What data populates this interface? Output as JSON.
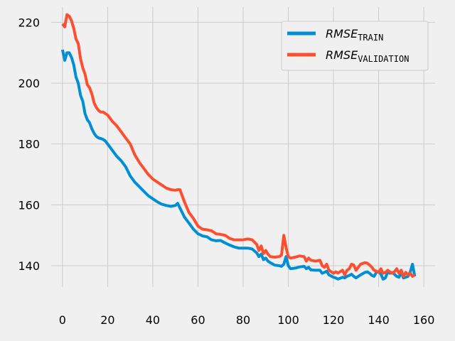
{
  "chart_data": {
    "type": "line",
    "title": "",
    "xlabel": "",
    "ylabel": "",
    "xlim": [
      -5,
      165
    ],
    "ylim": [
      133,
      225
    ],
    "x_ticks": [
      0,
      20,
      40,
      60,
      80,
      100,
      120,
      140,
      160
    ],
    "y_ticks": [
      140,
      160,
      180,
      200,
      220
    ],
    "grid": true,
    "legend_position": "top-right",
    "series": [
      {
        "name": "RMSE",
        "name_subscript": "TRAIN",
        "color": "#008fd5",
        "points": [
          [
            0,
            211
          ],
          [
            1,
            207.5
          ],
          [
            2,
            210
          ],
          [
            3,
            210
          ],
          [
            4,
            208.5
          ],
          [
            5,
            206
          ],
          [
            6,
            202
          ],
          [
            7,
            200
          ],
          [
            8,
            196
          ],
          [
            9,
            194
          ],
          [
            10,
            190
          ],
          [
            11,
            188
          ],
          [
            12,
            187
          ],
          [
            13,
            185
          ],
          [
            14,
            183.5
          ],
          [
            15,
            182.5
          ],
          [
            16,
            182
          ],
          [
            17,
            181.8
          ],
          [
            18,
            181.5
          ],
          [
            19,
            181
          ],
          [
            20,
            180
          ],
          [
            22,
            178
          ],
          [
            24,
            176
          ],
          [
            26,
            174.5
          ],
          [
            28,
            172.5
          ],
          [
            30,
            169.5
          ],
          [
            32,
            167.5
          ],
          [
            34,
            166
          ],
          [
            36,
            164.5
          ],
          [
            38,
            163
          ],
          [
            40,
            162
          ],
          [
            42,
            161
          ],
          [
            44,
            160.2
          ],
          [
            46,
            159.8
          ],
          [
            48,
            159.5
          ],
          [
            50,
            159.8
          ],
          [
            51,
            160.5
          ],
          [
            52,
            159
          ],
          [
            54,
            156
          ],
          [
            56,
            154
          ],
          [
            58,
            152
          ],
          [
            60,
            150.5
          ],
          [
            62,
            149.8
          ],
          [
            64,
            149.5
          ],
          [
            66,
            148.5
          ],
          [
            68,
            148.2
          ],
          [
            70,
            148.3
          ],
          [
            72,
            147.5
          ],
          [
            74,
            146.8
          ],
          [
            76,
            146.2
          ],
          [
            78,
            145.8
          ],
          [
            80,
            145.8
          ],
          [
            82,
            145.8
          ],
          [
            84,
            145.5
          ],
          [
            86,
            144.2
          ],
          [
            87,
            143
          ],
          [
            88,
            143.8
          ],
          [
            89,
            142
          ],
          [
            90,
            142.5
          ],
          [
            91,
            141.5
          ],
          [
            92,
            141
          ],
          [
            94,
            140.2
          ],
          [
            96,
            140
          ],
          [
            97,
            139.8
          ],
          [
            98,
            140.5
          ],
          [
            99,
            143
          ],
          [
            100,
            140
          ],
          [
            101,
            139
          ],
          [
            103,
            139.2
          ],
          [
            105,
            139.6
          ],
          [
            107,
            139.8
          ],
          [
            108,
            139
          ],
          [
            109,
            139.5
          ],
          [
            110,
            138.6
          ],
          [
            112,
            138.5
          ],
          [
            114,
            138.5
          ],
          [
            115,
            137.5
          ],
          [
            116,
            137.8
          ],
          [
            117,
            138.2
          ],
          [
            118,
            137
          ],
          [
            120,
            136.2
          ],
          [
            121,
            136
          ],
          [
            122,
            135.6
          ],
          [
            124,
            136.2
          ],
          [
            125,
            136
          ],
          [
            126,
            136.5
          ],
          [
            127,
            136.8
          ],
          [
            128,
            137.2
          ],
          [
            129,
            136.5
          ],
          [
            130,
            136
          ],
          [
            132,
            137
          ],
          [
            134,
            137.8
          ],
          [
            135,
            138
          ],
          [
            136,
            137.5
          ],
          [
            137,
            136.8
          ],
          [
            138,
            136.5
          ],
          [
            139,
            137.8
          ],
          [
            140,
            138
          ],
          [
            141,
            137.2
          ],
          [
            142,
            135.6
          ],
          [
            143,
            136
          ],
          [
            144,
            138
          ],
          [
            145,
            137.5
          ],
          [
            146,
            137.8
          ],
          [
            147,
            137.2
          ],
          [
            148,
            136.5
          ],
          [
            149,
            136.2
          ],
          [
            150,
            137.8
          ],
          [
            151,
            136
          ],
          [
            152,
            136.2
          ],
          [
            153,
            136.5
          ],
          [
            154,
            138
          ],
          [
            155,
            140.5
          ],
          [
            156,
            136.5
          ]
        ]
      },
      {
        "name": "RMSE",
        "name_subscript": "VALIDATION",
        "color": "#fc4f30",
        "points": [
          [
            0,
            219.5
          ],
          [
            1,
            218.5
          ],
          [
            2,
            222.5
          ],
          [
            3,
            222
          ],
          [
            4,
            220.5
          ],
          [
            5,
            218
          ],
          [
            6,
            214.5
          ],
          [
            7,
            213
          ],
          [
            8,
            208
          ],
          [
            9,
            205
          ],
          [
            10,
            203
          ],
          [
            11,
            199.5
          ],
          [
            12,
            198.5
          ],
          [
            13,
            196.5
          ],
          [
            14,
            193.5
          ],
          [
            15,
            192
          ],
          [
            16,
            191
          ],
          [
            17,
            190.5
          ],
          [
            18,
            190.5
          ],
          [
            19,
            190
          ],
          [
            20,
            189.5
          ],
          [
            22,
            187.5
          ],
          [
            24,
            186
          ],
          [
            26,
            184
          ],
          [
            28,
            182
          ],
          [
            30,
            180
          ],
          [
            32,
            176.5
          ],
          [
            34,
            174
          ],
          [
            36,
            172
          ],
          [
            38,
            170
          ],
          [
            40,
            168.5
          ],
          [
            42,
            167.5
          ],
          [
            44,
            166.5
          ],
          [
            46,
            165.5
          ],
          [
            48,
            165
          ],
          [
            50,
            164.8
          ],
          [
            51,
            165
          ],
          [
            52,
            165
          ],
          [
            54,
            161
          ],
          [
            56,
            157.5
          ],
          [
            58,
            155.5
          ],
          [
            60,
            153
          ],
          [
            62,
            152
          ],
          [
            64,
            151.8
          ],
          [
            66,
            151.5
          ],
          [
            68,
            150.5
          ],
          [
            70,
            150.3
          ],
          [
            72,
            150
          ],
          [
            74,
            149
          ],
          [
            76,
            148.5
          ],
          [
            78,
            148.5
          ],
          [
            80,
            148.5
          ],
          [
            82,
            148.8
          ],
          [
            84,
            148.5
          ],
          [
            86,
            147
          ],
          [
            87,
            145
          ],
          [
            88,
            146.5
          ],
          [
            89,
            144
          ],
          [
            90,
            145
          ],
          [
            91,
            143.8
          ],
          [
            92,
            143
          ],
          [
            94,
            142.8
          ],
          [
            96,
            143
          ],
          [
            97,
            143.5
          ],
          [
            98,
            150
          ],
          [
            99,
            146
          ],
          [
            100,
            143
          ],
          [
            101,
            142.5
          ],
          [
            103,
            142.8
          ],
          [
            105,
            143.2
          ],
          [
            107,
            143
          ],
          [
            108,
            141.5
          ],
          [
            109,
            142.5
          ],
          [
            110,
            141.8
          ],
          [
            112,
            141.5
          ],
          [
            114,
            141.8
          ],
          [
            115,
            140
          ],
          [
            116,
            139.5
          ],
          [
            117,
            140.5
          ],
          [
            118,
            138.5
          ],
          [
            120,
            137.5
          ],
          [
            121,
            138
          ],
          [
            122,
            137.6
          ],
          [
            124,
            138.5
          ],
          [
            125,
            137
          ],
          [
            126,
            138.5
          ],
          [
            127,
            139
          ],
          [
            128,
            140.5
          ],
          [
            129,
            140.2
          ],
          [
            130,
            138.5
          ],
          [
            132,
            140.5
          ],
          [
            134,
            141
          ],
          [
            135,
            140.8
          ],
          [
            136,
            140.2
          ],
          [
            137,
            139.5
          ],
          [
            138,
            138.5
          ],
          [
            139,
            138.2
          ],
          [
            140,
            137.8
          ],
          [
            141,
            139
          ],
          [
            142,
            137.5
          ],
          [
            143,
            137.8
          ],
          [
            144,
            138.5
          ],
          [
            145,
            138
          ],
          [
            146,
            137.5
          ],
          [
            147,
            138
          ],
          [
            148,
            139
          ],
          [
            149,
            137.5
          ],
          [
            150,
            138.5
          ],
          [
            151,
            136.5
          ],
          [
            152,
            137.8
          ],
          [
            153,
            137
          ],
          [
            154,
            137.5
          ],
          [
            155,
            136.5
          ],
          [
            156,
            137
          ]
        ]
      }
    ]
  }
}
